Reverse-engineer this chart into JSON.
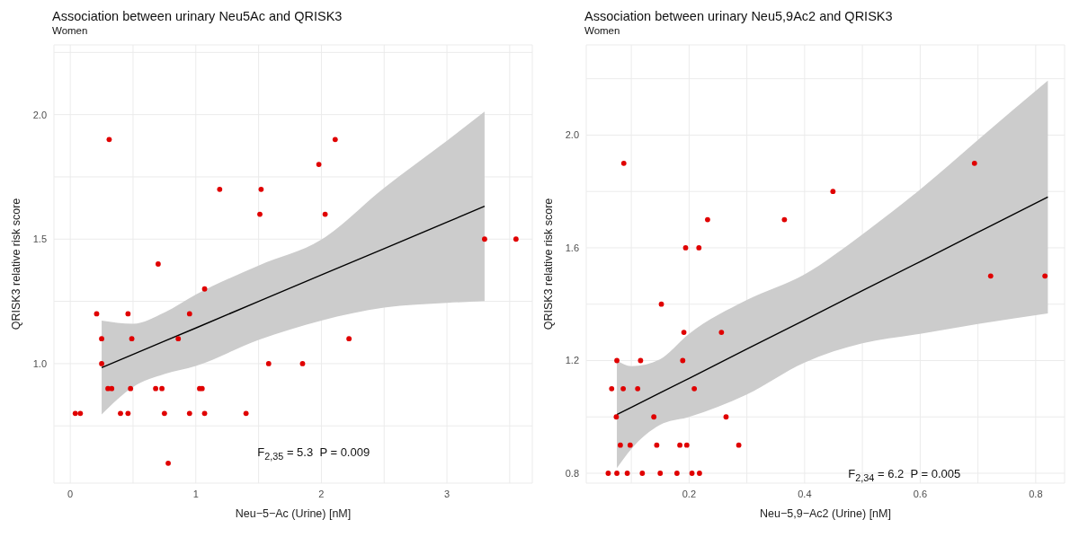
{
  "chart_data": [
    {
      "type": "scatter",
      "title": "Association between urinary Neu5Ac and QRISK3",
      "subtitle": "Women",
      "xlabel": "Neu−5−Ac (Urine) [nM]",
      "ylabel": "QRISK3 relative risk score",
      "xlim": [
        -0.13,
        3.68
      ],
      "ylim": [
        0.52,
        2.28
      ],
      "xticks": [
        0,
        {
          "value": 0.5,
          "label": null
        },
        1,
        {
          "value": 1.5,
          "label": null
        },
        2,
        {
          "value": 2.5,
          "label": null
        },
        3,
        {
          "value": 3.5,
          "label": null
        }
      ],
      "yticks": [
        {
          "value": 0.75,
          "label": null
        },
        {
          "value": 1,
          "label": "1.0"
        },
        {
          "value": 1.25,
          "label": null
        },
        1.5,
        {
          "value": 1.75,
          "label": null
        },
        {
          "value": 2,
          "label": "2.0"
        },
        {
          "value": 2.25,
          "label": null
        }
      ],
      "grid": true,
      "annotations": [
        "F$_{2,35}$ = 5.3  P = 0.009"
      ],
      "series": [
        {
          "marker": "circle",
          "color": "#e00000",
          "x": [
            0.31,
            2.11,
            1.98,
            1.19,
            1.52,
            1.51,
            2.03,
            3.3,
            3.55,
            0.7,
            1.07,
            0.21,
            0.46,
            0.95,
            0.25,
            0.49,
            0.86,
            2.22,
            0.25,
            1.58,
            1.85,
            0.3,
            0.33,
            0.48,
            0.68,
            0.73,
            1.03,
            1.05,
            0.04,
            0.08,
            0.4,
            0.46,
            0.75,
            0.95,
            1.07,
            1.4,
            0.78
          ],
          "values": [
            1.9,
            1.9,
            1.8,
            1.7,
            1.7,
            1.6,
            1.6,
            1.5,
            1.5,
            1.4,
            1.3,
            1.2,
            1.2,
            1.2,
            1.1,
            1.1,
            1.1,
            1.1,
            1.0,
            1.0,
            1.0,
            0.9,
            0.9,
            0.9,
            0.9,
            0.9,
            0.9,
            0.9,
            0.8,
            0.8,
            0.8,
            0.8,
            0.8,
            0.8,
            0.8,
            0.8,
            0.6
          ]
        },
        {
          "type": "line",
          "color": "#000000",
          "x": [
            0.25,
            0.5,
            0.75,
            1.0,
            1.5,
            2.0,
            2.5,
            3.0,
            3.3
          ],
          "values": [
            0.984,
            1.037,
            1.09,
            1.143,
            1.25,
            1.356,
            1.462,
            1.568,
            1.632
          ],
          "lower": [
            0.796,
            0.906,
            0.958,
            0.991,
            1.095,
            1.173,
            1.225,
            1.244,
            1.251
          ],
          "upper": [
            1.173,
            1.16,
            1.205,
            1.277,
            1.394,
            1.498,
            1.706,
            1.895,
            2.012
          ]
        }
      ]
    },
    {
      "type": "scatter",
      "title": "Association between urinary Neu5,9Ac2 and QRISK3",
      "subtitle": "Women",
      "xlabel": "Neu−5,9−Ac2 (Urine) [nM]",
      "ylabel": "QRISK3 relative risk score",
      "xlim": [
        0.022,
        0.85
      ],
      "ylim": [
        0.765,
        2.32
      ],
      "xticks": [
        {
          "value": 0.1,
          "label": null
        },
        0.2,
        {
          "value": 0.3,
          "label": null
        },
        0.4,
        {
          "value": 0.5,
          "label": null
        },
        0.6,
        {
          "value": 0.7,
          "label": null
        },
        0.8
      ],
      "yticks": [
        0.8,
        {
          "value": 1.0,
          "label": null
        },
        1.2,
        {
          "value": 1.4,
          "label": null
        },
        1.6,
        {
          "value": 1.8,
          "label": null
        },
        {
          "value": 2,
          "label": "2.0"
        },
        {
          "value": 2.2,
          "label": null
        }
      ],
      "grid": true,
      "annotations": [
        "F$_{2,34}$ = 6.2  P = 0.005"
      ],
      "series": [
        {
          "marker": "circle",
          "color": "#e00000",
          "x": [
            0.087,
            0.694,
            0.449,
            0.232,
            0.365,
            0.194,
            0.217,
            0.722,
            0.816,
            0.152,
            0.191,
            0.256,
            0.075,
            0.116,
            0.189,
            0.066,
            0.086,
            0.111,
            0.209,
            0.074,
            0.139,
            0.264,
            0.081,
            0.098,
            0.144,
            0.184,
            0.196,
            0.286,
            0.06,
            0.075,
            0.093,
            0.119,
            0.15,
            0.179,
            0.205,
            0.218
          ],
          "values": [
            1.9,
            1.9,
            1.8,
            1.7,
            1.7,
            1.6,
            1.6,
            1.5,
            1.5,
            1.4,
            1.3,
            1.3,
            1.2,
            1.2,
            1.2,
            1.1,
            1.1,
            1.1,
            1.1,
            1.0,
            1.0,
            1.0,
            0.9,
            0.9,
            0.9,
            0.9,
            0.9,
            0.9,
            0.8,
            0.8,
            0.8,
            0.8,
            0.8,
            0.8,
            0.8,
            0.8
          ]
        },
        {
          "type": "line",
          "color": "#000000",
          "x": [
            0.075,
            0.1,
            0.15,
            0.2,
            0.3,
            0.4,
            0.5,
            0.6,
            0.7,
            0.821
          ],
          "values": [
            1.008,
            1.034,
            1.086,
            1.137,
            1.241,
            1.344,
            1.448,
            1.551,
            1.655,
            1.78
          ],
          "lower": [
            0.818,
            0.886,
            0.972,
            1.0,
            1.08,
            1.193,
            1.261,
            1.295,
            1.33,
            1.367
          ],
          "upper": [
            1.2,
            1.18,
            1.205,
            1.295,
            1.415,
            1.506,
            1.648,
            1.807,
            1.983,
            2.193
          ]
        }
      ]
    }
  ]
}
